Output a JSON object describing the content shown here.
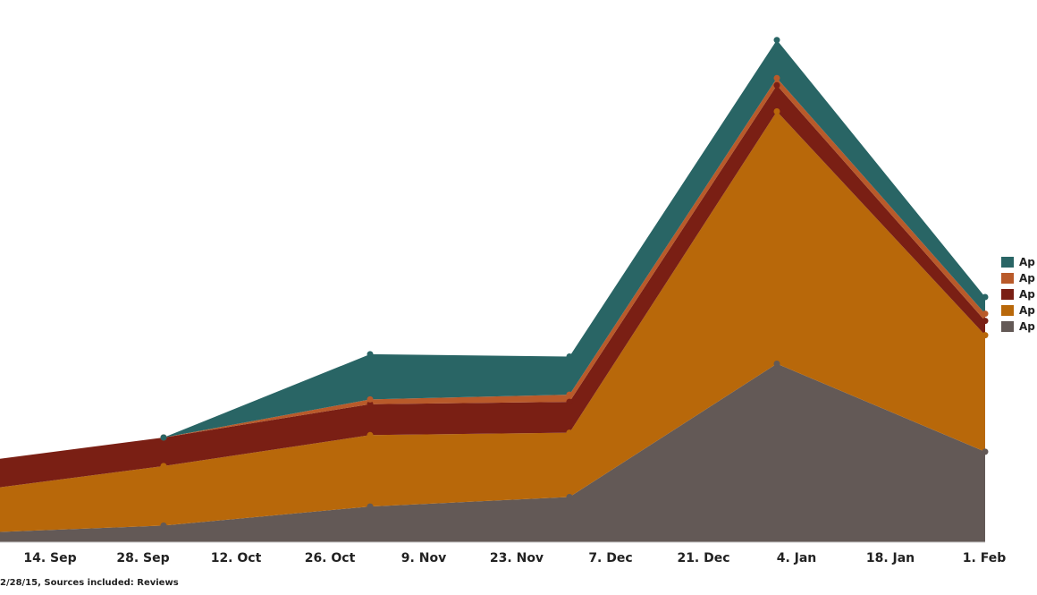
{
  "chart_data": {
    "type": "area",
    "stacked": true,
    "x": [
      "7. Sep",
      "28. Sep",
      "2. Nov",
      "30. Nov",
      "4. Jan",
      "1. Feb"
    ],
    "x_ticks": [
      "14. Sep",
      "28. Sep",
      "12. Oct",
      "26. Oct",
      "9. Nov",
      "23. Nov",
      "7. Dec",
      "21. Dec",
      "4. Jan",
      "18. Jan",
      "1. Feb"
    ],
    "series": [
      {
        "name": "Ap",
        "color": "#635956",
        "values": [
          4,
          7,
          15,
          19,
          75,
          38
        ]
      },
      {
        "name": "Ap",
        "color": "#b8680a",
        "values": [
          18,
          25,
          30,
          27,
          106,
          49
        ]
      },
      {
        "name": "Ap",
        "color": "#7a1f14",
        "values": [
          12,
          12,
          13,
          13,
          11,
          6
        ]
      },
      {
        "name": "Ap",
        "color": "#b95a2a",
        "values": [
          0,
          0,
          2,
          3,
          3,
          3
        ]
      },
      {
        "name": "Ap",
        "color": "#296565",
        "values": [
          0,
          0,
          19,
          16,
          16,
          7
        ]
      }
    ],
    "ylim": [
      0,
      215
    ],
    "grid": false,
    "legend_position": "right",
    "footer": "2/28/15, Sources included: Reviews"
  }
}
